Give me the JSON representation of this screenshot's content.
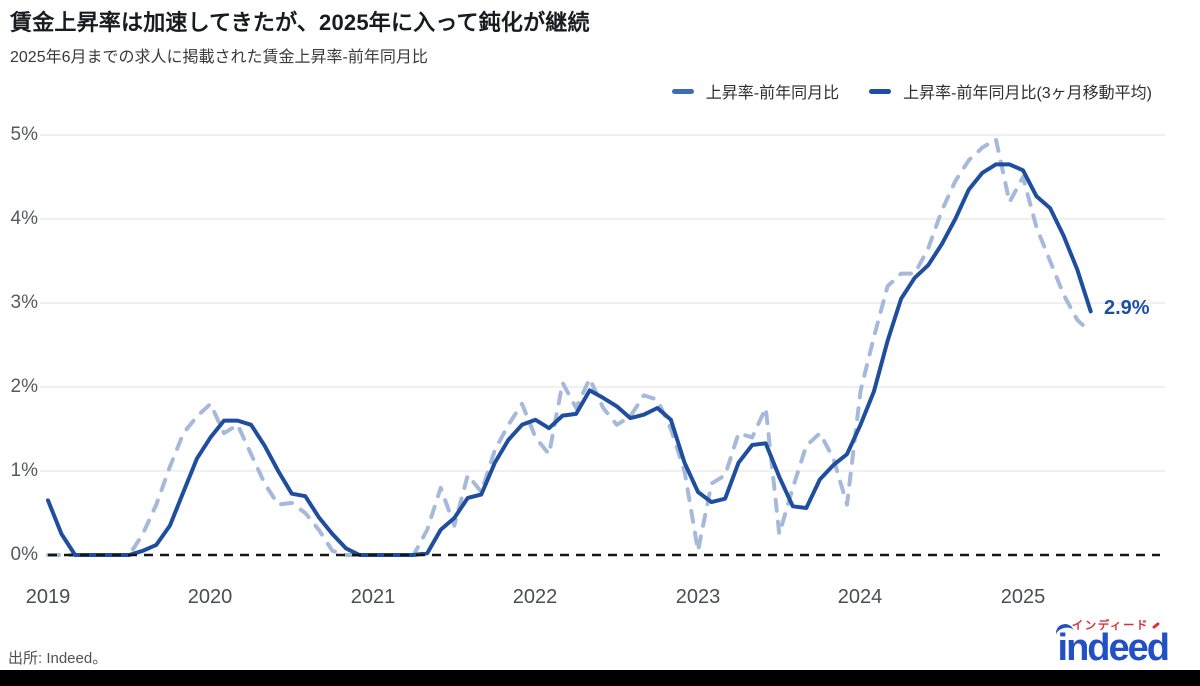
{
  "chart_data": {
    "type": "line",
    "title": "賃金上昇率は加速してきたが、2025年に入って鈍化が継続",
    "subtitle": "2025年6月までの求人に掲載された賃金上昇率-前年同月比",
    "x_start": "2019-01",
    "x_end": "2025-06",
    "x_tick_labels": [
      "2019",
      "2020",
      "2021",
      "2022",
      "2023",
      "2024",
      "2025"
    ],
    "y_tick_labels": [
      "0%",
      "1%",
      "2%",
      "3%",
      "4%",
      "5%"
    ],
    "ylim": [
      0,
      5
    ],
    "grid": "horizontal-light",
    "zero_line_style": "black-dashed",
    "legend_position": "top-right",
    "annotation": {
      "text": "2.9%",
      "series": "上昇率-前年同月比(3ヶ月移動平均)",
      "x": "2025-06",
      "value": 2.9
    },
    "series": [
      {
        "name": "上昇率-前年同月比",
        "style": "dashed",
        "color": "#a7b9db",
        "values": [
          0,
          0,
          0,
          0,
          0,
          0,
          0,
          0.25,
          0.6,
          1.05,
          1.45,
          1.65,
          1.8,
          1.45,
          1.55,
          1.2,
          0.85,
          0.6,
          0.62,
          0.5,
          0.3,
          0.05,
          0,
          0,
          0,
          0,
          0,
          0,
          0.3,
          0.8,
          0.35,
          0.95,
          0.75,
          1.25,
          1.55,
          1.8,
          1.4,
          1.2,
          2.05,
          1.75,
          2.1,
          1.75,
          1.55,
          1.65,
          1.9,
          1.85,
          1.5,
          1.0,
          0.05,
          0.85,
          0.95,
          1.45,
          1.4,
          1.75,
          0.25,
          0.8,
          1.3,
          1.45,
          1.15,
          0.6,
          1.95,
          2.6,
          3.2,
          3.35,
          3.35,
          3.65,
          4.1,
          4.45,
          4.7,
          4.85,
          4.95,
          4.2,
          4.5,
          3.9,
          3.5,
          3.1,
          2.8,
          2.65
        ]
      },
      {
        "name": "上昇率-前年同月比(3ヶ月移動平均)",
        "style": "solid",
        "color": "#1f4e9e",
        "values": [
          0.65,
          0.25,
          0,
          0,
          0,
          0,
          0,
          0.05,
          0.12,
          0.35,
          0.75,
          1.15,
          1.4,
          1.6,
          1.6,
          1.55,
          1.3,
          1.0,
          0.73,
          0.7,
          0.45,
          0.25,
          0.08,
          0,
          0,
          0,
          0,
          0,
          0.02,
          0.3,
          0.44,
          0.68,
          0.72,
          1.1,
          1.37,
          1.55,
          1.61,
          1.51,
          1.66,
          1.68,
          1.96,
          1.87,
          1.77,
          1.63,
          1.67,
          1.75,
          1.61,
          1.1,
          0.75,
          0.63,
          0.67,
          1.1,
          1.31,
          1.33,
          0.93,
          0.58,
          0.56,
          0.9,
          1.07,
          1.2,
          1.55,
          1.95,
          2.55,
          3.05,
          3.3,
          3.45,
          3.7,
          4.0,
          4.35,
          4.55,
          4.65,
          4.65,
          4.58,
          4.27,
          4.13,
          3.8,
          3.4,
          2.9
        ]
      }
    ]
  },
  "footer": {
    "source": "出所: Indeed。",
    "logo": {
      "wordmark": "indeed",
      "katakana": "インディード"
    }
  },
  "colors": {
    "series_monthly": "#a7b9db",
    "series_ma3": "#1f4e9e",
    "zero_line": "#161616",
    "grid": "#e7e7e7",
    "annotation": "#1d4fa1",
    "logo_blue": "#2251c5",
    "logo_red": "#d8333e"
  }
}
